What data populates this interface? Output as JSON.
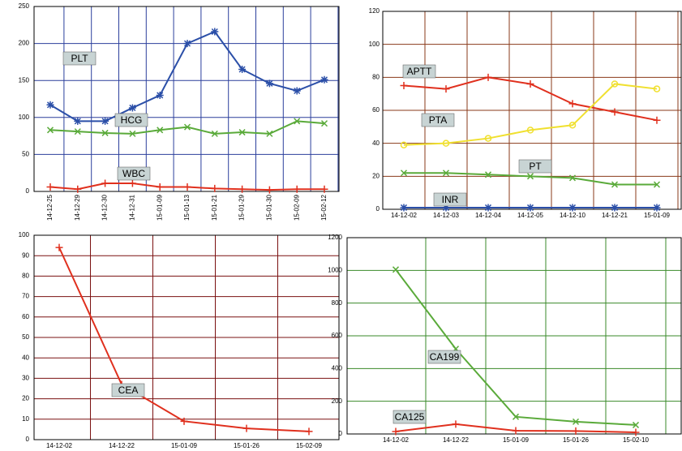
{
  "chart_data": [
    {
      "type": "line",
      "categories": [
        "14-12-25",
        "14-12-29",
        "14-12-30",
        "14-12-31",
        "15-01-09",
        "15-01-13",
        "15-01-21",
        "15-01-29",
        "15-01-30",
        "15-02-09",
        "15-02-12"
      ],
      "ylim": [
        0,
        250
      ],
      "yticks": [
        0,
        50,
        100,
        150,
        200,
        250
      ],
      "grid": true,
      "grid_color": "#2b3f9c",
      "series": [
        {
          "name": "PLT",
          "color": "#2b4fa8",
          "marker": "star",
          "values": [
            117,
            95,
            95,
            113,
            130,
            200,
            216,
            165,
            146,
            136,
            151
          ]
        },
        {
          "name": "HCG",
          "color": "#5aaa3a",
          "marker": "x",
          "values": [
            83,
            81,
            79,
            78,
            83,
            87,
            78,
            80,
            78,
            95,
            92
          ]
        },
        {
          "name": "WBC",
          "color": "#e0301e",
          "marker": "plus",
          "values": [
            6,
            3,
            11,
            11,
            6,
            6,
            4,
            3,
            2,
            3,
            3
          ]
        }
      ]
    },
    {
      "type": "line",
      "categories": [
        "14-12-02",
        "14-12-03",
        "14-12-04",
        "14-12-05",
        "14-12-10",
        "14-12-21",
        "15-01-09"
      ],
      "ylim": [
        0,
        120
      ],
      "yticks": [
        0,
        20,
        40,
        60,
        80,
        100,
        120
      ],
      "grid": true,
      "grid_color": "#8a3a1a",
      "series": [
        {
          "name": "APTT",
          "color": "#e0301e",
          "marker": "plus",
          "values": [
            75,
            73,
            80,
            76,
            64,
            59,
            54
          ]
        },
        {
          "name": "PTA",
          "color": "#f0e030",
          "marker": "circle",
          "values": [
            39,
            40,
            43,
            48,
            51,
            76,
            73
          ]
        },
        {
          "name": "PT",
          "color": "#5aaa3a",
          "marker": "x",
          "values": [
            22,
            22,
            21,
            20,
            19,
            15,
            15
          ]
        },
        {
          "name": "INR",
          "color": "#2b4fa8",
          "marker": "star",
          "values": [
            1,
            1,
            1,
            1,
            1,
            1,
            1
          ]
        }
      ]
    },
    {
      "type": "line",
      "categories": [
        "14-12-02",
        "14-12-22",
        "15-01-09",
        "15-01-26",
        "15-02-09"
      ],
      "ylim": [
        0,
        100
      ],
      "yticks": [
        0,
        10,
        20,
        30,
        40,
        50,
        60,
        70,
        80,
        90,
        100
      ],
      "grid": true,
      "grid_color": "#7a1010",
      "series": [
        {
          "name": "CEA",
          "color": "#e0301e",
          "marker": "plus",
          "values": [
            94,
            27,
            9,
            5.5,
            4
          ]
        }
      ]
    },
    {
      "type": "line",
      "categories": [
        "14-12-02",
        "14-12-22",
        "15-01-09",
        "15-01-26",
        "15-02-10"
      ],
      "ylim": [
        0,
        1200
      ],
      "yticks": [
        0,
        200,
        400,
        600,
        800,
        1000,
        1200
      ],
      "grid": true,
      "grid_color": "#3a8a2a",
      "series": [
        {
          "name": "CA199",
          "color": "#5aaa3a",
          "marker": "x",
          "values": [
            1005,
            520,
            105,
            75,
            55
          ]
        },
        {
          "name": "CA125",
          "color": "#e0301e",
          "marker": "plus",
          "values": [
            15,
            60,
            20,
            18,
            10
          ]
        }
      ]
    }
  ]
}
